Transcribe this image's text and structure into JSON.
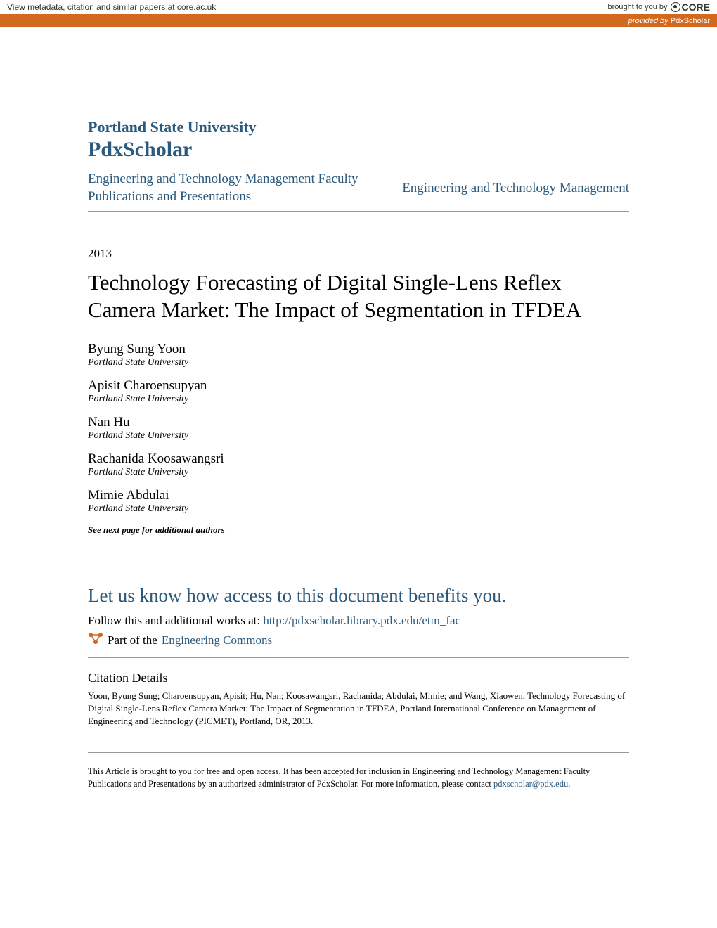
{
  "banner": {
    "metadata_prefix": "View metadata, citation and similar papers at ",
    "metadata_link": "core.ac.uk",
    "brought_by": "brought to you by",
    "core_label": "CORE",
    "provided_prefix": "provided by ",
    "provider": "PdxScholar"
  },
  "header": {
    "university": "Portland State University",
    "repository": "PdxScholar",
    "dept_left": "Engineering and Technology Management Faculty Publications and Presentations",
    "dept_right": "Engineering and Technology Management"
  },
  "paper": {
    "year": "2013",
    "title": "Technology Forecasting of Digital Single-Lens Reflex Camera Market: The Impact of Segmentation in TFDEA"
  },
  "authors": [
    {
      "name": "Byung Sung Yoon",
      "affiliation": "Portland State University"
    },
    {
      "name": "Apisit Charoensupyan",
      "affiliation": "Portland State University"
    },
    {
      "name": "Nan Hu",
      "affiliation": "Portland State University"
    },
    {
      "name": "Rachanida Koosawangsri",
      "affiliation": "Portland State University"
    },
    {
      "name": "Mimie Abdulai",
      "affiliation": "Portland State University"
    }
  ],
  "see_next": "See next page for additional authors",
  "benefits": {
    "heading": "Let us know how access to this document benefits you.",
    "follow_prefix": "Follow this and additional works at: ",
    "follow_url": "http://pdxscholar.library.pdx.edu/etm_fac",
    "part_of_prefix": "Part of the ",
    "part_of_link": "Engineering Commons"
  },
  "citation": {
    "heading": "Citation Details",
    "text": "Yoon, Byung Sung; Charoensupyan, Apisit; Hu, Nan; Koosawangsri, Rachanida; Abdulai, Mimie; and Wang, Xiaowen, Technology Forecasting of Digital Single-Lens Reflex Camera Market: The Impact of Segmentation in TFDEA, Portland International Conference on Management of Engineering and Technology (PICMET), Portland, OR, 2013."
  },
  "footer": {
    "text_prefix": "This Article is brought to you for free and open access. It has been accepted for inclusion in Engineering and Technology Management Faculty Publications and Presentations by an authorized administrator of PdxScholar. For more information, please contact ",
    "email": "pdxscholar@pdx.edu",
    "text_suffix": "."
  },
  "colors": {
    "accent_orange": "#d2691e",
    "link_blue": "#2b5a7d",
    "divider_gray": "#999999",
    "background": "#ffffff"
  }
}
